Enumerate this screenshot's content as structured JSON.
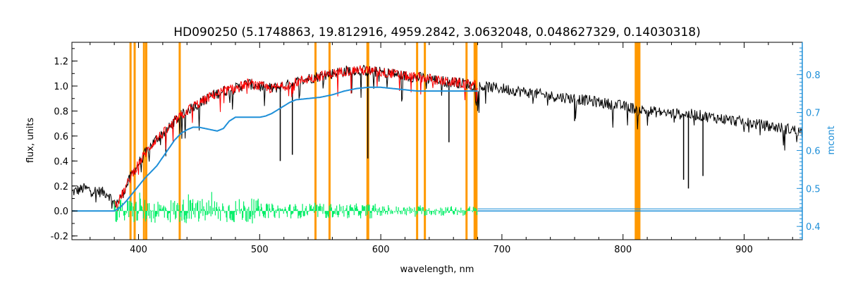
{
  "chart_data": {
    "type": "line",
    "title": "HD090250    (5.1748863, 19.812916, 4959.2842, 3.0632048, 0.048627329, 0.14030318)",
    "xlabel": "wavelength, nm",
    "ylabel": "flux, units",
    "y2label": "mcont",
    "xlim": [
      345,
      948
    ],
    "ylim": [
      -0.23,
      1.35
    ],
    "y2lim": [
      0.365,
      0.885
    ],
    "x_ticks": [
      400,
      500,
      600,
      700,
      800,
      900
    ],
    "y_ticks": [
      -0.2,
      0.0,
      0.2,
      0.4,
      0.6,
      0.8,
      1.0,
      1.2
    ],
    "y2_ticks": [
      0.4,
      0.5,
      0.6,
      0.7,
      0.8
    ],
    "grid": false,
    "colors": {
      "observed": "#000000",
      "model": "#ff0000",
      "residual": "#00ee66",
      "continuum": "#1e8fd8",
      "mask": "#ff9900",
      "axis_left": "#000000",
      "axis_right": "#1e8fd8"
    },
    "mask_lines": [
      393.4,
      396.8,
      404.5,
      406.4,
      434.0,
      546.1,
      557.7,
      589.0,
      589.6,
      630.0,
      636.4,
      670.8,
      677.5,
      679.0,
      810.5,
      811.5,
      812.5,
      813.5
    ],
    "series": [
      {
        "key": "observed",
        "x": [
          345,
          355,
          365,
          375,
          380,
          385,
          390,
          395,
          400,
          405,
          410,
          415,
          420,
          425,
          430,
          435,
          440,
          445,
          450,
          460,
          470,
          480,
          490,
          500,
          510,
          520,
          530,
          540,
          550,
          560,
          570,
          580,
          590,
          600,
          610,
          620,
          630,
          640,
          650,
          660,
          670,
          680,
          690,
          700,
          720,
          740,
          760,
          780,
          800,
          820,
          840,
          860,
          880,
          900,
          920,
          940,
          948
        ],
        "values": [
          0.15,
          0.18,
          0.16,
          0.14,
          0.05,
          0.1,
          0.2,
          0.3,
          0.38,
          0.45,
          0.52,
          0.58,
          0.62,
          0.66,
          0.72,
          0.76,
          0.8,
          0.84,
          0.86,
          0.92,
          0.96,
          0.98,
          1.02,
          1.0,
          0.98,
          1.0,
          1.03,
          1.06,
          1.08,
          1.1,
          1.12,
          1.13,
          1.12,
          1.11,
          1.1,
          1.08,
          1.07,
          1.06,
          1.04,
          1.03,
          1.02,
          1.0,
          0.99,
          0.98,
          0.95,
          0.92,
          0.9,
          0.87,
          0.84,
          0.8,
          0.78,
          0.77,
          0.74,
          0.71,
          0.68,
          0.65,
          0.63
        ]
      },
      {
        "key": "model",
        "x": [
          380,
          385,
          390,
          395,
          400,
          405,
          410,
          415,
          420,
          425,
          430,
          435,
          440,
          445,
          450,
          460,
          470,
          480,
          490,
          500,
          510,
          520,
          530,
          540,
          550,
          560,
          570,
          580,
          590,
          600,
          610,
          620,
          630,
          640,
          650,
          660,
          670,
          680
        ],
        "values": [
          0.05,
          0.1,
          0.2,
          0.3,
          0.38,
          0.45,
          0.52,
          0.58,
          0.62,
          0.66,
          0.72,
          0.76,
          0.8,
          0.84,
          0.86,
          0.92,
          0.96,
          0.98,
          1.02,
          1.0,
          0.98,
          1.0,
          1.03,
          1.06,
          1.08,
          1.1,
          1.12,
          1.13,
          1.12,
          1.11,
          1.1,
          1.08,
          1.07,
          1.06,
          1.04,
          1.03,
          1.02,
          1.0
        ]
      },
      {
        "key": "continuum",
        "x": [
          345,
          380,
          385,
          390,
          395,
          400,
          405,
          410,
          415,
          420,
          425,
          430,
          435,
          440,
          445,
          450,
          455,
          460,
          465,
          470,
          475,
          480,
          485,
          490,
          495,
          500,
          505,
          510,
          515,
          520,
          525,
          530,
          540,
          550,
          560,
          570,
          580,
          590,
          600,
          610,
          620,
          630,
          640,
          650,
          660,
          670,
          680
        ],
        "values": [
          0.0,
          0.0,
          0.03,
          0.08,
          0.14,
          0.2,
          0.26,
          0.31,
          0.36,
          0.43,
          0.5,
          0.57,
          0.62,
          0.65,
          0.67,
          0.67,
          0.66,
          0.65,
          0.64,
          0.66,
          0.72,
          0.75,
          0.75,
          0.75,
          0.75,
          0.75,
          0.76,
          0.78,
          0.81,
          0.84,
          0.87,
          0.89,
          0.9,
          0.91,
          0.93,
          0.96,
          0.98,
          0.99,
          0.99,
          0.98,
          0.97,
          0.96,
          0.96,
          0.96,
          0.96,
          0.96,
          0.96
        ]
      },
      {
        "key": "residual",
        "x": [
          380,
          680
        ],
        "values": [
          0.0,
          0.0
        ]
      }
    ]
  }
}
